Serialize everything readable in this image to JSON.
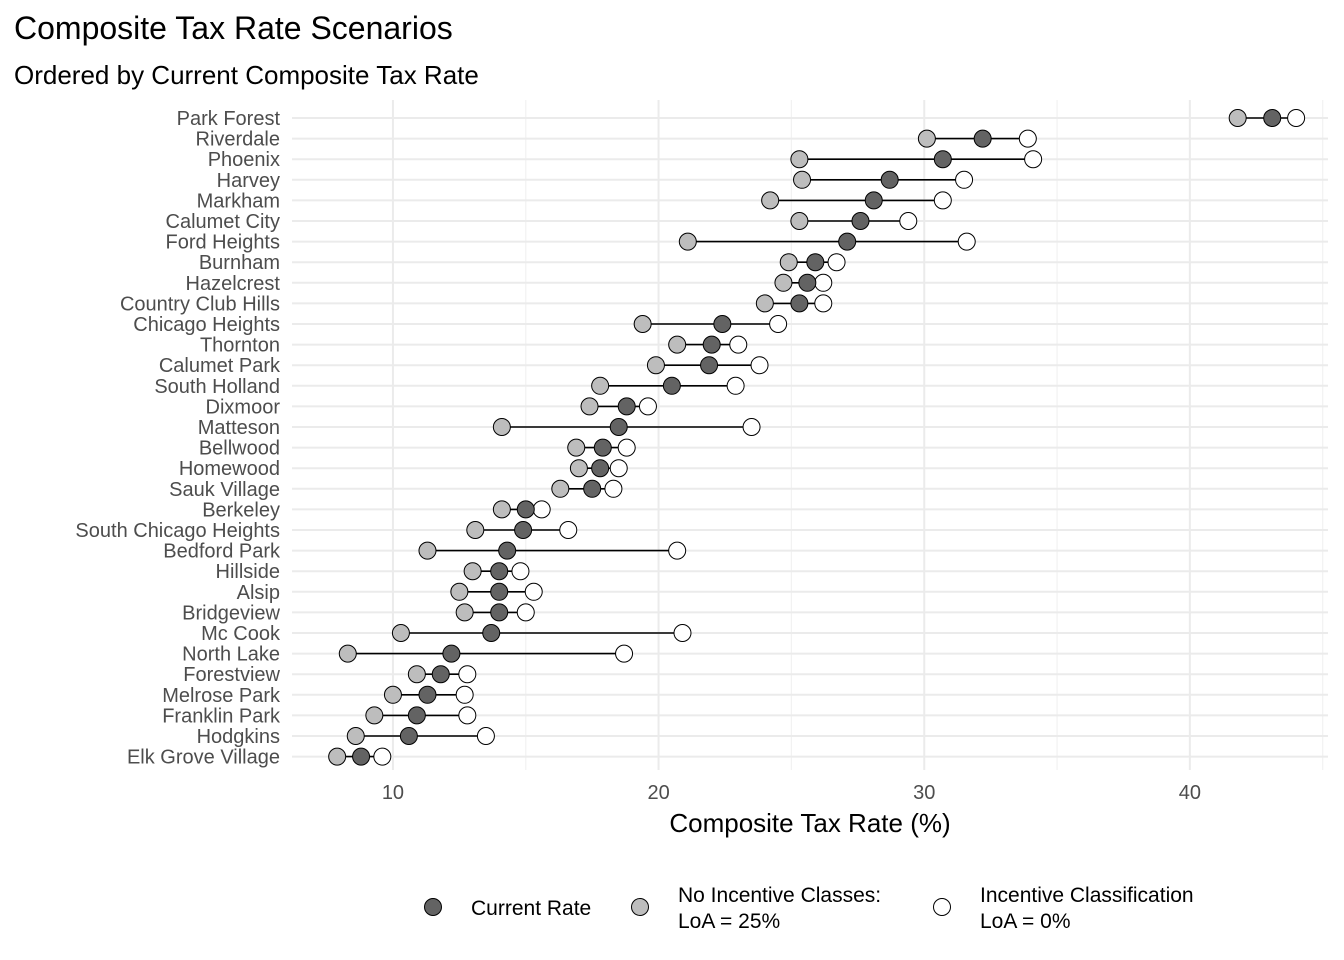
{
  "chart_data": {
    "type": "dumbbell",
    "title": "Composite Tax Rate Scenarios",
    "subtitle": "Ordered by Current Composite Tax Rate",
    "xlabel": "Composite Tax Rate (%)",
    "ylabel": "",
    "xlim": [
      6.2,
      45.2
    ],
    "xticks": [
      10,
      20,
      30,
      40
    ],
    "grid": true,
    "legend_position": "bottom",
    "series": [
      {
        "key": "current",
        "label_lines": [
          "Current Rate"
        ],
        "color": "#636363"
      },
      {
        "key": "no_incentive",
        "label_lines": [
          "No Incentive Classes:",
          "LoA = 25%"
        ],
        "color": "#bdbdbd"
      },
      {
        "key": "incentive",
        "label_lines": [
          "Incentive Classification",
          "LoA = 0%"
        ],
        "color": "#ffffff"
      }
    ],
    "rows": [
      {
        "name": "Park Forest",
        "current": 43.1,
        "no_incentive": 41.8,
        "incentive": 44.0
      },
      {
        "name": "Riverdale",
        "current": 32.2,
        "no_incentive": 30.1,
        "incentive": 33.9
      },
      {
        "name": "Phoenix",
        "current": 30.7,
        "no_incentive": 25.3,
        "incentive": 34.1
      },
      {
        "name": "Harvey",
        "current": 28.7,
        "no_incentive": 25.4,
        "incentive": 31.5
      },
      {
        "name": "Markham",
        "current": 28.1,
        "no_incentive": 24.2,
        "incentive": 30.7
      },
      {
        "name": "Calumet City",
        "current": 27.6,
        "no_incentive": 25.3,
        "incentive": 29.4
      },
      {
        "name": "Ford Heights",
        "current": 27.1,
        "no_incentive": 21.1,
        "incentive": 31.6
      },
      {
        "name": "Burnham",
        "current": 25.9,
        "no_incentive": 24.9,
        "incentive": 26.7
      },
      {
        "name": "Hazelcrest",
        "current": 25.6,
        "no_incentive": 24.7,
        "incentive": 26.2
      },
      {
        "name": "Country Club Hills",
        "current": 25.3,
        "no_incentive": 24.0,
        "incentive": 26.2
      },
      {
        "name": "Chicago Heights",
        "current": 22.4,
        "no_incentive": 19.4,
        "incentive": 24.5
      },
      {
        "name": "Thornton",
        "current": 22.0,
        "no_incentive": 20.7,
        "incentive": 23.0
      },
      {
        "name": "Calumet Park",
        "current": 21.9,
        "no_incentive": 19.9,
        "incentive": 23.8
      },
      {
        "name": "South Holland",
        "current": 20.5,
        "no_incentive": 17.8,
        "incentive": 22.9
      },
      {
        "name": "Dixmoor",
        "current": 18.8,
        "no_incentive": 17.4,
        "incentive": 19.6
      },
      {
        "name": "Matteson",
        "current": 18.5,
        "no_incentive": 14.1,
        "incentive": 23.5
      },
      {
        "name": "Bellwood",
        "current": 17.9,
        "no_incentive": 16.9,
        "incentive": 18.8
      },
      {
        "name": "Homewood",
        "current": 17.8,
        "no_incentive": 17.0,
        "incentive": 18.5
      },
      {
        "name": "Sauk Village",
        "current": 17.5,
        "no_incentive": 16.3,
        "incentive": 18.3
      },
      {
        "name": "Berkeley",
        "current": 15.0,
        "no_incentive": 14.1,
        "incentive": 15.6
      },
      {
        "name": "South Chicago Heights",
        "current": 14.9,
        "no_incentive": 13.1,
        "incentive": 16.6
      },
      {
        "name": "Bedford Park",
        "current": 14.3,
        "no_incentive": 11.3,
        "incentive": 20.7
      },
      {
        "name": "Hillside",
        "current": 14.0,
        "no_incentive": 13.0,
        "incentive": 14.8
      },
      {
        "name": "Alsip",
        "current": 14.0,
        "no_incentive": 12.5,
        "incentive": 15.3
      },
      {
        "name": "Bridgeview",
        "current": 14.0,
        "no_incentive": 12.7,
        "incentive": 15.0
      },
      {
        "name": "Mc Cook",
        "current": 13.7,
        "no_incentive": 10.3,
        "incentive": 20.9
      },
      {
        "name": "North Lake",
        "current": 12.2,
        "no_incentive": 8.3,
        "incentive": 18.7
      },
      {
        "name": "Forestview",
        "current": 11.8,
        "no_incentive": 10.9,
        "incentive": 12.8
      },
      {
        "name": "Melrose Park",
        "current": 11.3,
        "no_incentive": 10.0,
        "incentive": 12.7
      },
      {
        "name": "Franklin Park",
        "current": 10.9,
        "no_incentive": 9.3,
        "incentive": 12.8
      },
      {
        "name": "Hodgkins",
        "current": 10.6,
        "no_incentive": 8.6,
        "incentive": 13.5
      },
      {
        "name": "Elk Grove Village",
        "current": 8.8,
        "no_incentive": 7.9,
        "incentive": 9.6
      }
    ]
  }
}
